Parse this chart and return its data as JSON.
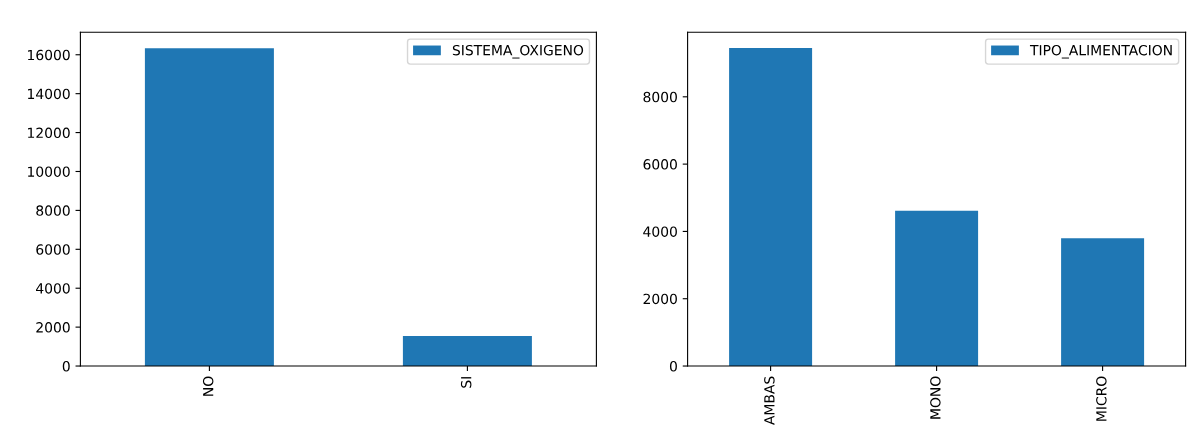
{
  "chart_data": [
    {
      "type": "bar",
      "categories": [
        "NO",
        "SI"
      ],
      "series": [
        {
          "name": "SISTEMA_OXIGENO",
          "color": "#1f77b4",
          "values": [
            16340,
            1550
          ]
        }
      ],
      "ylim": [
        0,
        17160
      ],
      "yticks": [
        0,
        2000,
        4000,
        6000,
        8000,
        10000,
        12000,
        14000,
        16000
      ],
      "legend": "top right",
      "grid": false
    },
    {
      "type": "bar",
      "categories": [
        "AMBAS",
        "MONO",
        "MICRO"
      ],
      "series": [
        {
          "name": "TIPO_ALIMENTACION",
          "color": "#1f77b4",
          "values": [
            9450,
            4615,
            3795
          ]
        }
      ],
      "ylim": [
        0,
        9920
      ],
      "yticks": [
        0,
        2000,
        4000,
        6000,
        8000
      ],
      "legend": "top right",
      "grid": false
    }
  ]
}
